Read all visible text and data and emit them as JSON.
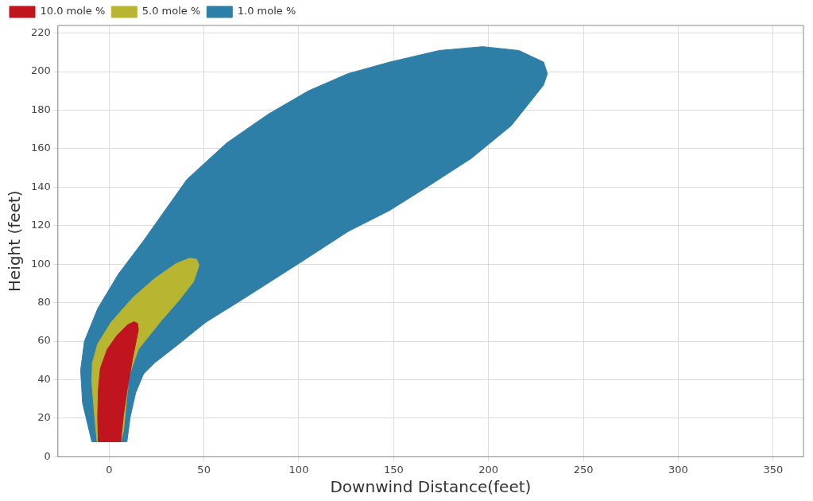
{
  "chart_data": {
    "type": "area",
    "xlabel": "Downwind Distance(feet)",
    "ylabel": "Height (feet)",
    "xlim": [
      -27,
      366
    ],
    "xticks": [
      0,
      50,
      100,
      150,
      200,
      250,
      300,
      350
    ],
    "ylim": [
      0,
      224
    ],
    "yticks": [
      0,
      20,
      40,
      60,
      80,
      100,
      120,
      140,
      160,
      180,
      200,
      220
    ],
    "grid": true,
    "legend": "top left",
    "series": [
      {
        "name": "10.0 mole %",
        "color": "#c0151e",
        "x": [
          -5.7,
          6.1,
          7.6,
          9.7,
          12.5,
          15.4,
          15.1,
          13.2,
          9.7,
          4.0,
          -1.0,
          -4.6,
          -5.7,
          -6.0,
          -5.7
        ],
        "values": [
          7.8,
          7.8,
          21.9,
          36.0,
          51.6,
          65.7,
          69.2,
          70.2,
          68.5,
          62.8,
          55.8,
          45.9,
          34.6,
          20.5,
          7.8
        ]
      },
      {
        "name": "5.0 mole %",
        "color": "#b8b631",
        "x": [
          -6.3,
          6.1,
          7.6,
          9.0,
          10.4,
          15.4,
          26.8,
          36.8,
          44.6,
          47.4,
          46.0,
          42.4,
          35.3,
          23.9,
          12.5,
          1.1,
          -6.0,
          -8.8,
          -9.1,
          -7.7,
          -6.3
        ],
        "values": [
          7.8,
          7.8,
          13.4,
          27.5,
          41.7,
          55.8,
          69.9,
          81.2,
          91.1,
          99.6,
          102.7,
          103.1,
          100.3,
          92.5,
          82.6,
          69.9,
          58.6,
          48.7,
          38.9,
          21.9,
          7.8
        ]
      },
      {
        "name": "1.0 mole %",
        "color": "#2e7fa8",
        "x": [
          -9.1,
          9.4,
          11.1,
          14,
          18.2,
          23.9,
          36.8,
          51,
          69.5,
          101,
          126,
          148,
          169,
          191,
          212,
          229,
          231,
          229,
          216,
          197,
          174,
          148,
          126,
          105,
          84,
          62,
          41,
          18,
          5,
          -6,
          -13,
          -15,
          -14,
          -9.1
        ],
        "values": [
          7.8,
          7.8,
          20.5,
          33.2,
          43.1,
          48.7,
          58.6,
          69.9,
          81.2,
          101,
          117,
          128,
          141,
          155,
          172,
          193,
          199,
          205,
          211,
          213,
          211,
          205,
          199,
          190,
          178,
          163,
          144,
          112,
          95,
          77,
          60,
          45,
          28,
          7.8
        ]
      }
    ]
  }
}
